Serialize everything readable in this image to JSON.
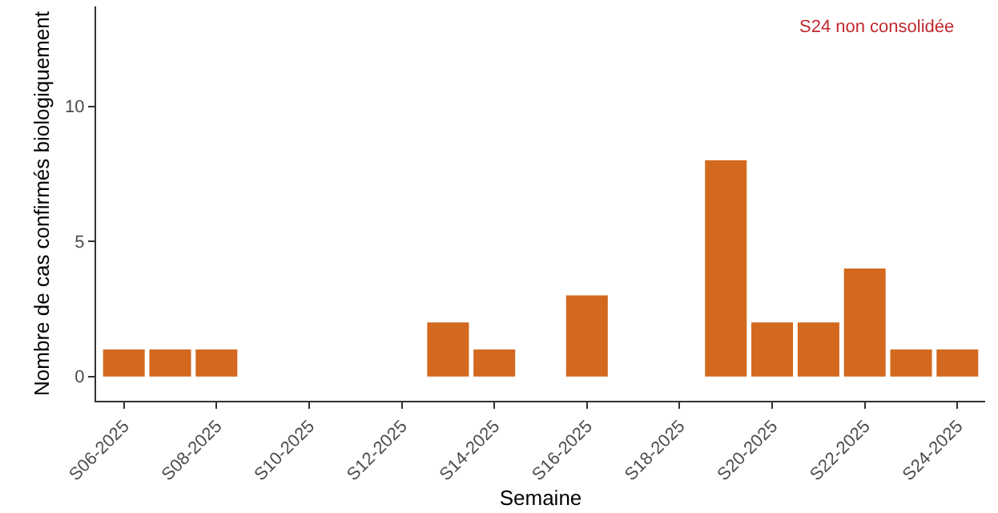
{
  "chart_data": {
    "type": "bar",
    "xlabel": "Semaine",
    "ylabel": "Nombre de cas confirmés biologiquement",
    "categories": [
      "S06-2025",
      null,
      "S08-2025",
      null,
      "S10-2025",
      null,
      "S12-2025",
      null,
      "S14-2025",
      null,
      "S16-2025",
      null,
      "S18-2025",
      null,
      "S20-2025",
      null,
      "S22-2025",
      null,
      "S24-2025"
    ],
    "values": [
      1,
      1,
      1,
      0,
      0,
      0,
      0,
      2,
      1,
      0,
      3,
      0,
      0,
      8,
      2,
      2,
      4,
      1,
      1
    ],
    "color": "#d2691e",
    "ylim": [
      -0.9,
      13.7
    ],
    "yticks": [
      0,
      5,
      10
    ],
    "annotations": [
      "S24 non consolidée"
    ]
  }
}
